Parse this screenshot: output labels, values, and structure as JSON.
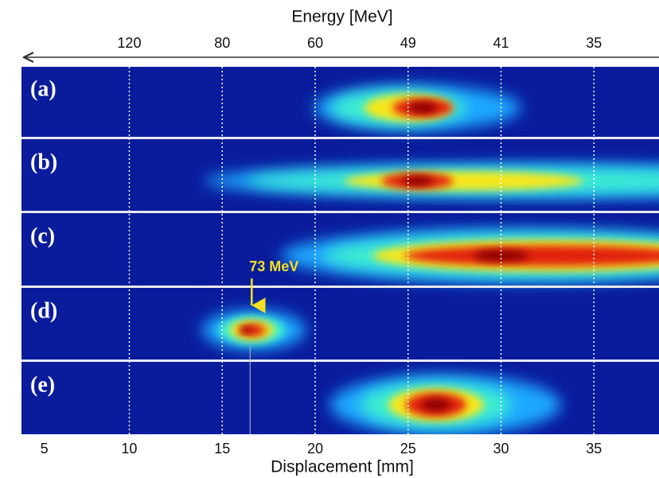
{
  "chart_data": {
    "type": "spectra",
    "x2label": "Energy [MeV]",
    "xlabel": "Displacement [mm]",
    "xlim": [
      4.2,
      38.5
    ],
    "xticks": [
      5,
      10,
      15,
      20,
      25,
      30,
      35
    ],
    "x2ticks": [
      {
        "value": 120,
        "x": 10
      },
      {
        "value": 80,
        "x": 15
      },
      {
        "value": 60,
        "x": 20
      },
      {
        "value": 49,
        "x": 25
      },
      {
        "value": 41,
        "x": 30
      },
      {
        "value": 35,
        "x": 35
      }
    ],
    "panels": [
      {
        "label": "(a)",
        "peak": 25.5
      },
      {
        "label": "(b)",
        "peak": 26
      },
      {
        "label": "(c)",
        "peak": 30
      },
      {
        "label": "(d)",
        "peak": 16.6
      },
      {
        "label": "(e)",
        "peak": 26.5
      }
    ],
    "annotation": {
      "text": "73 MeV",
      "x": 16.5
    }
  }
}
